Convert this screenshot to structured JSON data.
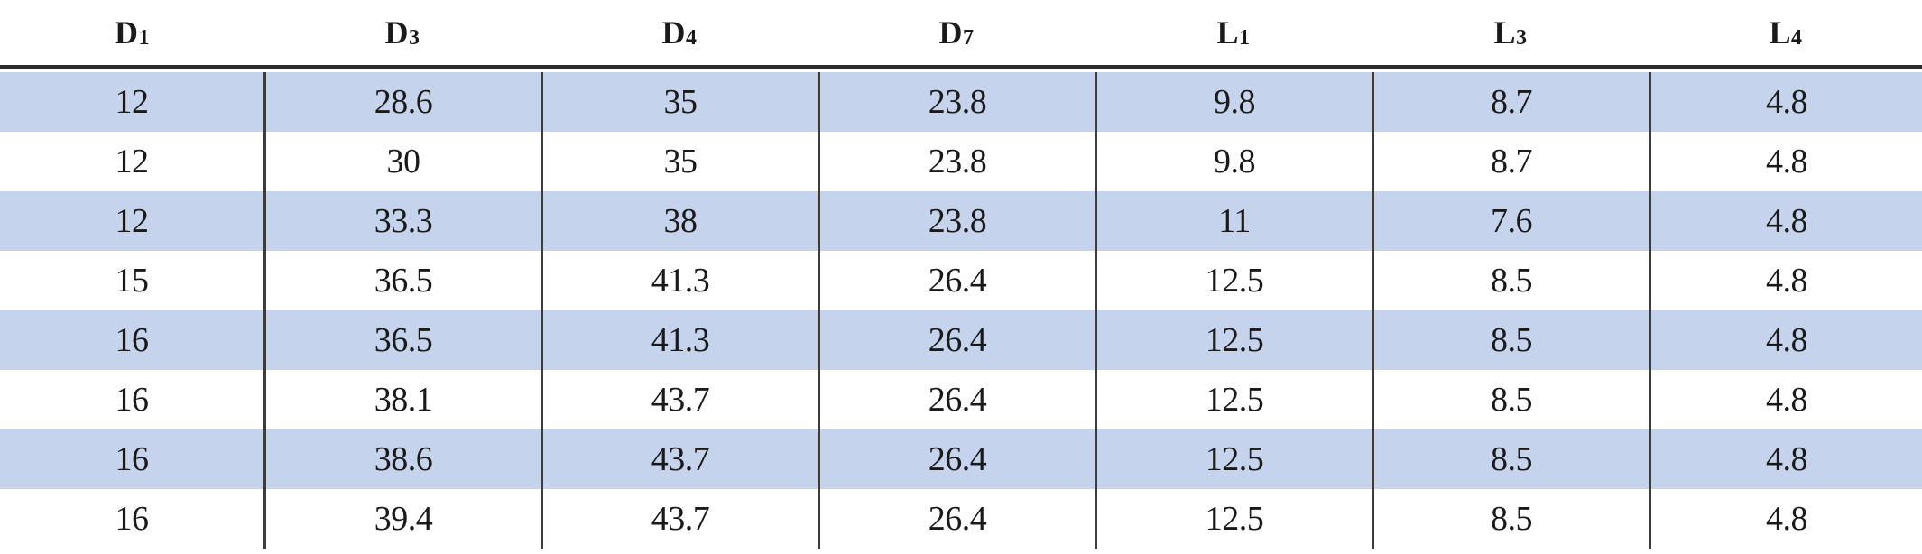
{
  "table": {
    "headers": [
      {
        "main": "D",
        "sub": "1"
      },
      {
        "main": "D",
        "sub": "3"
      },
      {
        "main": "D",
        "sub": "4"
      },
      {
        "main": "D",
        "sub": "7"
      },
      {
        "main": "L",
        "sub": "1"
      },
      {
        "main": "L",
        "sub": "3"
      },
      {
        "main": "L",
        "sub": "4"
      }
    ],
    "rows": [
      [
        "12",
        "28.6",
        "35",
        "23.8",
        "9.8",
        "8.7",
        "4.8"
      ],
      [
        "12",
        "30",
        "35",
        "23.8",
        "9.8",
        "8.7",
        "4.8"
      ],
      [
        "12",
        "33.3",
        "38",
        "23.8",
        "11",
        "7.6",
        "4.8"
      ],
      [
        "15",
        "36.5",
        "41.3",
        "26.4",
        "12.5",
        "8.5",
        "4.8"
      ],
      [
        "16",
        "36.5",
        "41.3",
        "26.4",
        "12.5",
        "8.5",
        "4.8"
      ],
      [
        "16",
        "38.1",
        "43.7",
        "26.4",
        "12.5",
        "8.5",
        "4.8"
      ],
      [
        "16",
        "38.6",
        "43.7",
        "26.4",
        "12.5",
        "8.5",
        "4.8"
      ],
      [
        "16",
        "39.4",
        "43.7",
        "26.4",
        "12.5",
        "8.5",
        "4.8"
      ]
    ]
  },
  "colors": {
    "stripe": "#c6d3ec",
    "text": "#1a1a1a",
    "rule": "#2b2b2b"
  }
}
